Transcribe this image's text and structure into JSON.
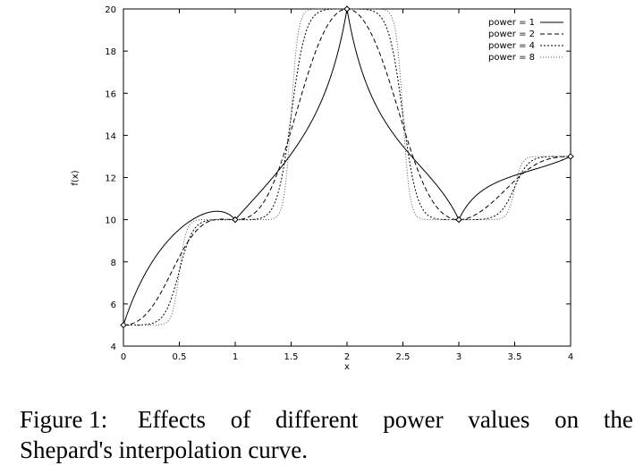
{
  "chart_data": {
    "type": "line",
    "title": "",
    "xlabel": "x",
    "ylabel": "f(x)",
    "xlim": [
      0,
      4
    ],
    "ylim": [
      4,
      20
    ],
    "xticks": [
      "0",
      "0.5",
      "1",
      "1.5",
      "2",
      "2.5",
      "3",
      "3.5",
      "4"
    ],
    "yticks": [
      "4",
      "6",
      "8",
      "10",
      "12",
      "14",
      "16",
      "18",
      "20"
    ],
    "grid": false,
    "legend_position": "top-right",
    "data_points": [
      {
        "x": 0,
        "y": 5
      },
      {
        "x": 1,
        "y": 10
      },
      {
        "x": 2,
        "y": 20
      },
      {
        "x": 3,
        "y": 10
      },
      {
        "x": 4,
        "y": 13
      }
    ],
    "x": [
      0,
      0.25,
      0.5,
      0.75,
      1,
      1.25,
      1.5,
      1.75,
      2,
      2.25,
      2.5,
      2.75,
      3,
      3.25,
      3.5,
      3.75,
      4
    ],
    "series": [
      {
        "name": "power = 1",
        "values": [
          5,
          8.6,
          9.9,
          10.3,
          10,
          11.2,
          12.6,
          14.9,
          20,
          14.6,
          13.6,
          11.5,
          10,
          11.6,
          12.2,
          12.6,
          13
        ]
      },
      {
        "name": "power = 2",
        "values": [
          5,
          6.2,
          8.6,
          9.9,
          10,
          10.3,
          13.2,
          17.5,
          20,
          17.5,
          13.4,
          10.3,
          10,
          10.4,
          11.5,
          12.7,
          13
        ]
      },
      {
        "name": "power = 4",
        "values": [
          5,
          5.3,
          8.4,
          9.9,
          10,
          10.0,
          13.3,
          19.5,
          20,
          19.5,
          13.3,
          10.0,
          10,
          10.05,
          11.5,
          12.95,
          13
        ]
      },
      {
        "name": "power = 8",
        "values": [
          5,
          5.0,
          8.3,
          10.0,
          10,
          10.0,
          13.2,
          20.0,
          20,
          20.0,
          13.2,
          10.0,
          10,
          10.0,
          11.5,
          13.0,
          13
        ]
      }
    ]
  },
  "caption": {
    "label": "Figure 1:",
    "text_line1": [
      "Effects",
      "of",
      "different",
      "power",
      "values",
      "on",
      "the"
    ],
    "text_line2": "Shepard's interpolation curve."
  }
}
